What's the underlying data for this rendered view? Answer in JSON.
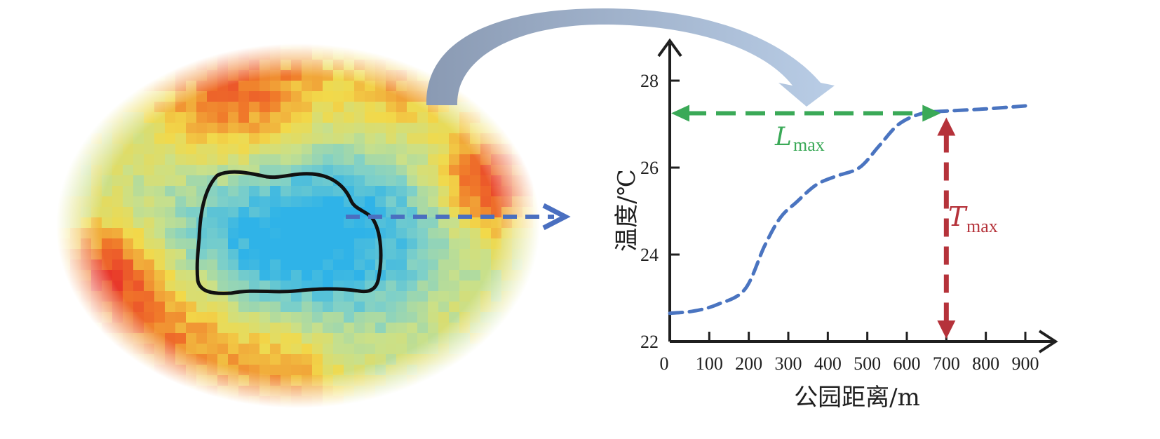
{
  "figure": {
    "map_description": "park land surface temperature heat map",
    "colors": {
      "axis": "#1f1f1f",
      "curve": "#4a74c0",
      "lmax": "#3aa957",
      "tmax": "#b5323a",
      "map_arrow": "#4a6fc0",
      "curved_arrow_start": "#8a9ab3",
      "curved_arrow_end": "#b9cde6",
      "park_outline": "#111111",
      "heat_cold": "#2fb3e8",
      "heat_cool": "#7fd0c8",
      "heat_mid": "#c9e08a",
      "heat_warm": "#f2d94a",
      "heat_hot": "#f07a2a",
      "heat_hottest": "#e8372a"
    }
  },
  "chart_data": {
    "type": "line",
    "xlabel": "公园距离/m",
    "ylabel": "温度/℃",
    "x_ticks": [
      "0",
      "100",
      "200",
      "300",
      "400",
      "500",
      "600",
      "700",
      "800",
      "900"
    ],
    "y_ticks": [
      "22",
      "24",
      "26",
      "28"
    ],
    "xlim": [
      0,
      1000
    ],
    "ylim": [
      22,
      29
    ],
    "series": [
      {
        "name": "temperature",
        "style": "dashed",
        "x": [
          0,
          60,
          120,
          190,
          240,
          280,
          320,
          370,
          420,
          480,
          530,
          580,
          640,
          700,
          800,
          900
        ],
        "y": [
          22.65,
          22.7,
          22.85,
          23.2,
          24.2,
          24.85,
          25.2,
          25.6,
          25.8,
          26.0,
          26.5,
          27.0,
          27.25,
          27.3,
          27.35,
          27.42
        ]
      }
    ],
    "annotations": [
      {
        "label": "L",
        "subscript": "max",
        "type": "double-arrow-horizontal",
        "color": "#3aa957",
        "x_from": 0,
        "x_to": 700,
        "y": 27.25
      },
      {
        "label": "T",
        "subscript": "max",
        "type": "double-arrow-vertical",
        "color": "#b5323a",
        "x": 700,
        "y_from": 22,
        "y_to": 27.25
      }
    ]
  }
}
